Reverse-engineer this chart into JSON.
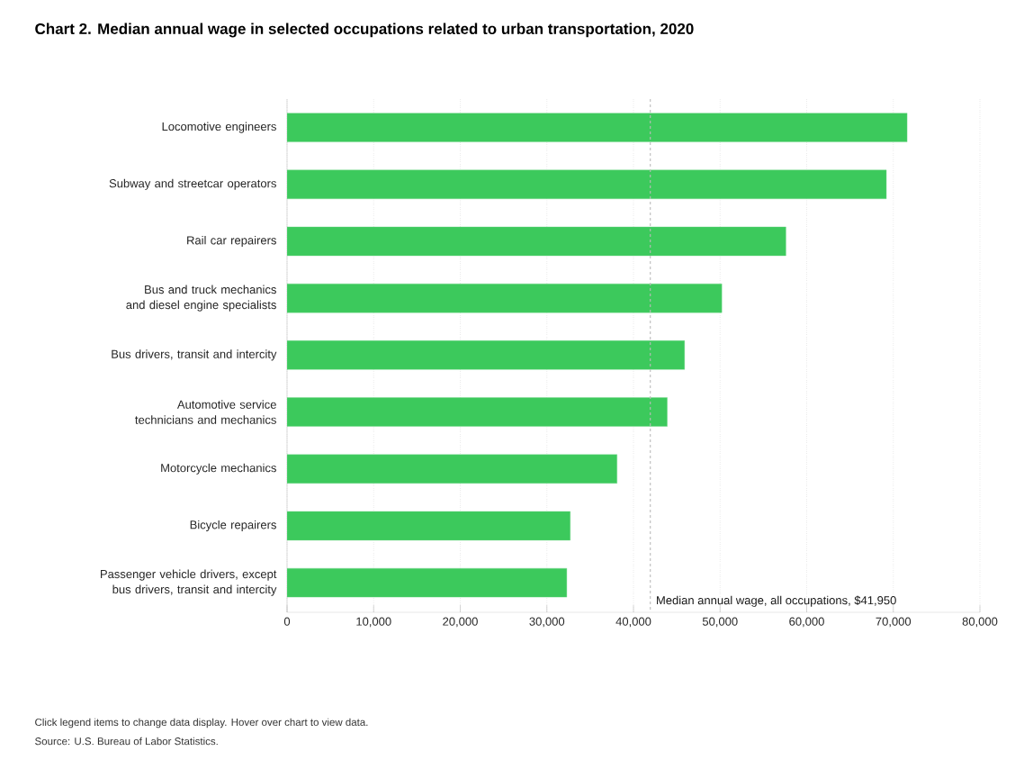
{
  "chart_data": {
    "type": "bar",
    "orientation": "horizontal",
    "title": "Chart 2. Median annual wage in selected occupations related to urban transportation, 2020",
    "categories": [
      "Locomotive engineers",
      "Subway and streetcar operators",
      "Rail car repairers",
      "Bus and truck mechanics and diesel engine specialists",
      "Bus drivers, transit and intercity",
      "Automotive service technicians and mechanics",
      "Motorcycle mechanics",
      "Bicycle repairers",
      "Passenger vehicle drivers, except bus drivers, transit and intercity"
    ],
    "values": [
      71600,
      69200,
      57600,
      50200,
      45900,
      43900,
      38100,
      32700,
      32300
    ],
    "color": "#3cc95c",
    "xlim": [
      0,
      80000
    ],
    "xticks": [
      0,
      {
        "value": 10000,
        "label": "10,000"
      },
      {
        "value": 20000,
        "label": "20,000"
      },
      {
        "value": 30000,
        "label": "30,000"
      },
      {
        "value": 40000,
        "label": "40,000"
      },
      {
        "value": 50000,
        "label": "50,000"
      },
      {
        "value": 60000,
        "label": "60,000"
      },
      {
        "value": 70000,
        "label": "70,000"
      },
      {
        "value": 80000,
        "label": "80,000"
      }
    ],
    "grid": "x",
    "legend": false,
    "ref_lines": [
      {
        "axis": "x",
        "value": 41950,
        "label": "Median annual wage, all occupations, $41,950",
        "color": "#bbbbbb",
        "line_style": "dashed"
      }
    ],
    "annotations": [
      "Click legend items to change data display. Hover over chart to view data.",
      "Source: U.S. Bureau of Labor Statistics."
    ]
  }
}
